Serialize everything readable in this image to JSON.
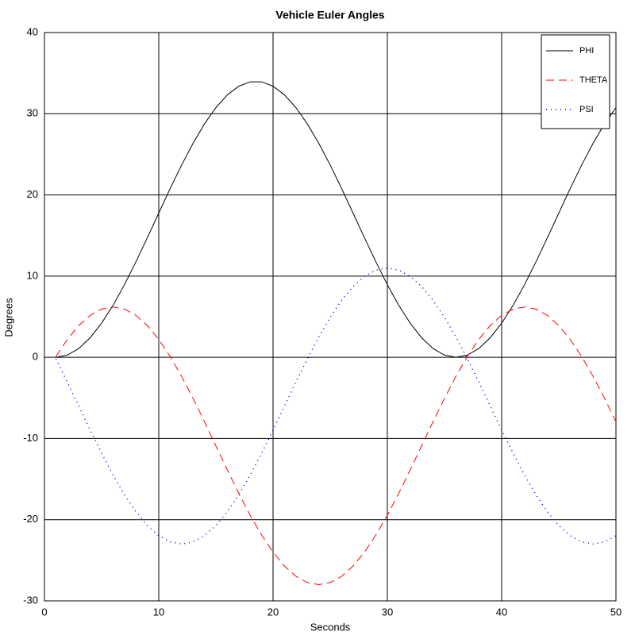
{
  "chart_data": {
    "type": "line",
    "title": "Vehicle Euler Angles",
    "xlabel": "Seconds",
    "ylabel": "Degrees",
    "x": [
      1,
      2,
      3,
      4,
      5,
      6,
      7,
      8,
      9,
      10,
      11,
      12,
      13,
      14,
      15,
      16,
      17,
      18,
      19,
      20,
      21,
      22,
      23,
      24,
      25,
      26,
      27,
      28,
      29,
      30,
      31,
      32,
      33,
      34,
      35,
      36,
      37,
      38,
      39,
      40,
      41,
      42,
      43,
      44,
      45,
      46,
      47,
      48,
      49,
      50
    ],
    "series": [
      {
        "name": "PHI",
        "color": "#000000",
        "dash": "solid",
        "values": [
          0,
          0.27,
          1.08,
          2.41,
          4.2,
          6.4,
          8.94,
          11.75,
          14.72,
          17.76,
          20.78,
          23.68,
          26.36,
          28.75,
          30.75,
          32.32,
          33.39,
          33.93,
          33.93,
          33.39,
          32.32,
          30.75,
          28.75,
          26.36,
          23.68,
          20.78,
          17.76,
          14.72,
          11.75,
          8.94,
          6.4,
          4.2,
          2.41,
          1.08,
          0.27,
          0,
          0.27,
          1.08,
          2.41,
          4.2,
          6.4,
          8.94,
          11.75,
          14.72,
          17.76,
          20.78,
          23.68,
          26.36,
          28.75,
          30.75
        ]
      },
      {
        "name": "THETA",
        "color": "#ff0000",
        "dash": "dashed",
        "values": [
          0.09,
          2.2,
          3.91,
          5.17,
          5.94,
          6.2,
          5.94,
          5.17,
          3.91,
          2.2,
          0.09,
          -2.35,
          -5.05,
          -7.93,
          -10.9,
          -13.87,
          -16.75,
          -19.45,
          -21.89,
          -24.0,
          -25.71,
          -26.97,
          -27.74,
          -28.0,
          -27.74,
          -26.97,
          -25.71,
          -24.0,
          -21.89,
          -19.45,
          -16.75,
          -13.87,
          -10.9,
          -7.93,
          -5.05,
          -2.35,
          0.09,
          2.2,
          3.91,
          5.17,
          5.94,
          6.2,
          5.94,
          5.17,
          3.91,
          2.2,
          0.09,
          -2.35,
          -5.05,
          -7.93
        ]
      },
      {
        "name": "PSI",
        "color": "#0000ff",
        "dash": "dotted",
        "values": [
          -0.19,
          -3.05,
          -6,
          -8.95,
          -11.81,
          -14.5,
          -16.93,
          -19.02,
          -20.72,
          -21.97,
          -22.74,
          -23,
          -22.74,
          -21.97,
          -20.72,
          -19.02,
          -16.93,
          -14.5,
          -11.81,
          -8.95,
          -6,
          -3.05,
          -0.19,
          2.5,
          4.93,
          7.02,
          8.72,
          9.97,
          10.74,
          11,
          10.74,
          9.97,
          8.72,
          7.02,
          4.93,
          2.5,
          -0.19,
          -3.05,
          -6,
          -8.95,
          -11.81,
          -14.5,
          -16.93,
          -19.02,
          -20.72,
          -21.97,
          -22.74,
          -23,
          -22.74,
          -21.97
        ]
      }
    ],
    "xlim": [
      0,
      50
    ],
    "xticks": [
      0,
      10,
      20,
      30,
      40,
      50
    ],
    "ylim": [
      -30,
      40
    ],
    "yticks": [
      -30,
      -20,
      -10,
      0,
      10,
      20,
      30,
      40
    ],
    "grid": true,
    "legend": "upper right"
  }
}
